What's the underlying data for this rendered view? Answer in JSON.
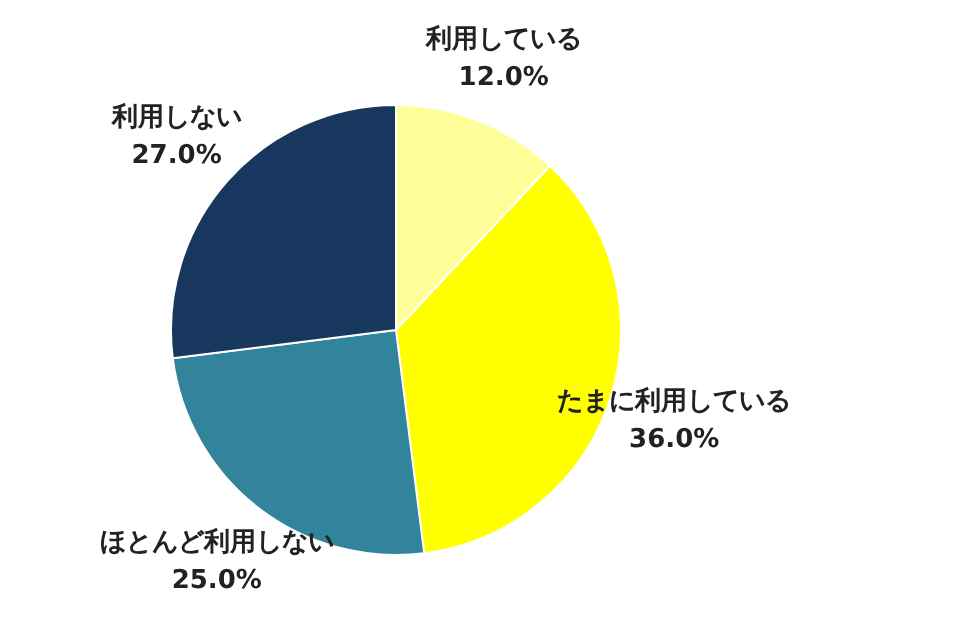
{
  "chart_data": {
    "type": "pie",
    "categories": [
      "利用している",
      "たまに利用している",
      "ほとんど利用しない",
      "利用しない"
    ],
    "values": [
      12,
      36,
      25,
      27
    ],
    "value_labels": [
      "12.0%",
      "36.0%",
      "25.0%",
      "27.0%"
    ],
    "colors": [
      "#ffff99",
      "#ffff00",
      "#31849b",
      "#17375e"
    ],
    "legend": false
  }
}
